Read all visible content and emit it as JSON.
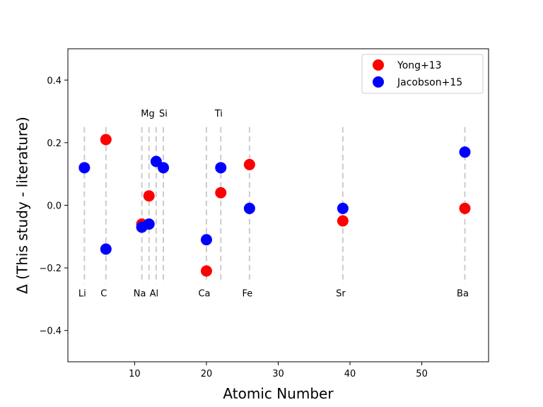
{
  "chart_data": {
    "type": "scatter",
    "xlabel": "Atomic Number",
    "ylabel": "Δ (This study - literature)",
    "xlim": [
      0.7,
      59.3
    ],
    "ylim": [
      -0.5,
      0.5
    ],
    "x_ticks": [
      10,
      20,
      30,
      40,
      50
    ],
    "y_ticks": [
      -0.4,
      -0.2,
      0.0,
      0.2,
      0.4
    ],
    "x_tick_labels": [
      "10",
      "20",
      "30",
      "40",
      "50"
    ],
    "y_tick_labels": [
      "−0.4",
      "−0.2",
      "0.0",
      "0.2",
      "0.4"
    ],
    "grid": false,
    "legend_position": "top-right",
    "element_lines": [
      {
        "z": 3,
        "label": "Li",
        "label_pos": "bottom"
      },
      {
        "z": 6,
        "label": "C",
        "label_pos": "bottom"
      },
      {
        "z": 11,
        "label": "Na",
        "label_pos": "bottom"
      },
      {
        "z": 12,
        "label": "Mg",
        "label_pos": "top"
      },
      {
        "z": 13,
        "label": "Al",
        "label_pos": "bottom"
      },
      {
        "z": 14,
        "label": "Si",
        "label_pos": "top"
      },
      {
        "z": 20,
        "label": "Ca",
        "label_pos": "bottom"
      },
      {
        "z": 22,
        "label": "Ti",
        "label_pos": "top"
      },
      {
        "z": 26,
        "label": "Fe",
        "label_pos": "bottom"
      },
      {
        "z": 39,
        "label": "Sr",
        "label_pos": "bottom"
      },
      {
        "z": 56,
        "label": "Ba",
        "label_pos": "bottom"
      }
    ],
    "element_line_range": [
      -0.25,
      0.25
    ],
    "series": [
      {
        "name": "Yong+13",
        "color": "#ff0000",
        "points": [
          {
            "x": 6,
            "y": 0.21
          },
          {
            "x": 11,
            "y": -0.06
          },
          {
            "x": 12,
            "y": 0.03
          },
          {
            "x": 20,
            "y": -0.21
          },
          {
            "x": 22,
            "y": 0.04
          },
          {
            "x": 26,
            "y": 0.13
          },
          {
            "x": 39,
            "y": -0.05
          },
          {
            "x": 56,
            "y": -0.01
          }
        ]
      },
      {
        "name": "Jacobson+15",
        "color": "#0000ff",
        "points": [
          {
            "x": 3,
            "y": 0.12
          },
          {
            "x": 6,
            "y": -0.14
          },
          {
            "x": 11,
            "y": -0.07
          },
          {
            "x": 12,
            "y": -0.06
          },
          {
            "x": 13,
            "y": 0.14
          },
          {
            "x": 14,
            "y": 0.12
          },
          {
            "x": 20,
            "y": -0.11
          },
          {
            "x": 22,
            "y": 0.12
          },
          {
            "x": 26,
            "y": -0.01
          },
          {
            "x": 39,
            "y": -0.01
          },
          {
            "x": 56,
            "y": 0.17
          }
        ]
      }
    ]
  }
}
